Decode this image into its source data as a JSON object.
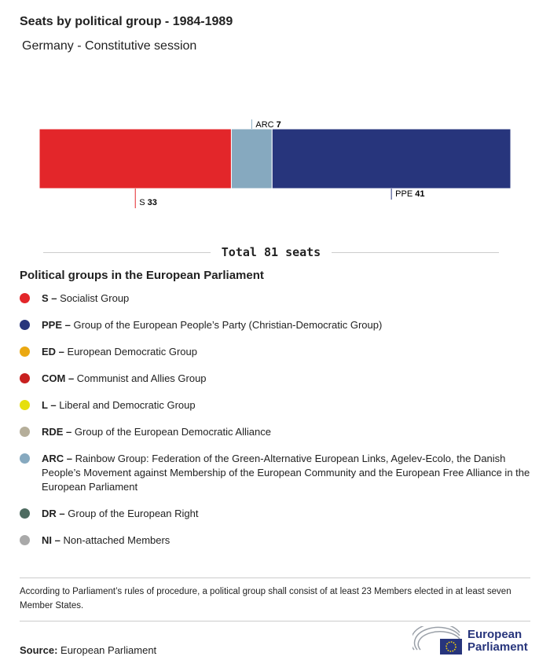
{
  "chart_data": {
    "type": "stacked-bar",
    "title": "Seats by political group - 1984-1989",
    "subtitle": "Germany - Constitutive session",
    "xlim": [
      0,
      81
    ],
    "series": [
      {
        "name": "S",
        "color": "#e3262a",
        "values": [
          33
        ]
      },
      {
        "name": "ARC",
        "color": "#86a9bf",
        "values": [
          7
        ]
      },
      {
        "name": "PPE",
        "color": "#27357c",
        "values": [
          41
        ]
      }
    ],
    "total": {
      "label": "Total",
      "value": 81,
      "unit": "seats"
    }
  },
  "legend": {
    "title": "Political groups in the European Parliament",
    "items": [
      {
        "abbr": "S –",
        "description": "Socialist Group",
        "color": "#e3262a"
      },
      {
        "abbr": "PPE –",
        "description": "Group of the European People’s Party (Christian-Democratic Group)",
        "color": "#27357c"
      },
      {
        "abbr": "ED –",
        "description": "European Democratic Group",
        "color": "#eaa812"
      },
      {
        "abbr": "COM –",
        "description": "Communist and Allies Group",
        "color": "#c8201f"
      },
      {
        "abbr": "L –",
        "description": "Liberal and Democratic Group",
        "color": "#e6df0d"
      },
      {
        "abbr": "RDE –",
        "description": "Group of the European Democratic Alliance",
        "color": "#b5ae9a"
      },
      {
        "abbr": "ARC –",
        "description": "Rainbow Group: Federation of the Green-Alternative European Links, Agelev-Ecolo, the Danish People’s Movement against Membership of the European Community and the European Free Alliance in the European Parliament",
        "color": "#86a9bf"
      },
      {
        "abbr": "DR –",
        "description": "Group of the European Right",
        "color": "#4d6b60"
      },
      {
        "abbr": "NI –",
        "description": "Non-attached Members",
        "color": "#a9a9a9"
      }
    ]
  },
  "note": "According to Parliament’s rules of procedure, a political group shall consist of at least 23 Members elected in at least seven Member States.",
  "source": {
    "label": "Source:",
    "text": "European Parliament"
  },
  "logo": {
    "line1": "European",
    "line2": "Parliament"
  }
}
